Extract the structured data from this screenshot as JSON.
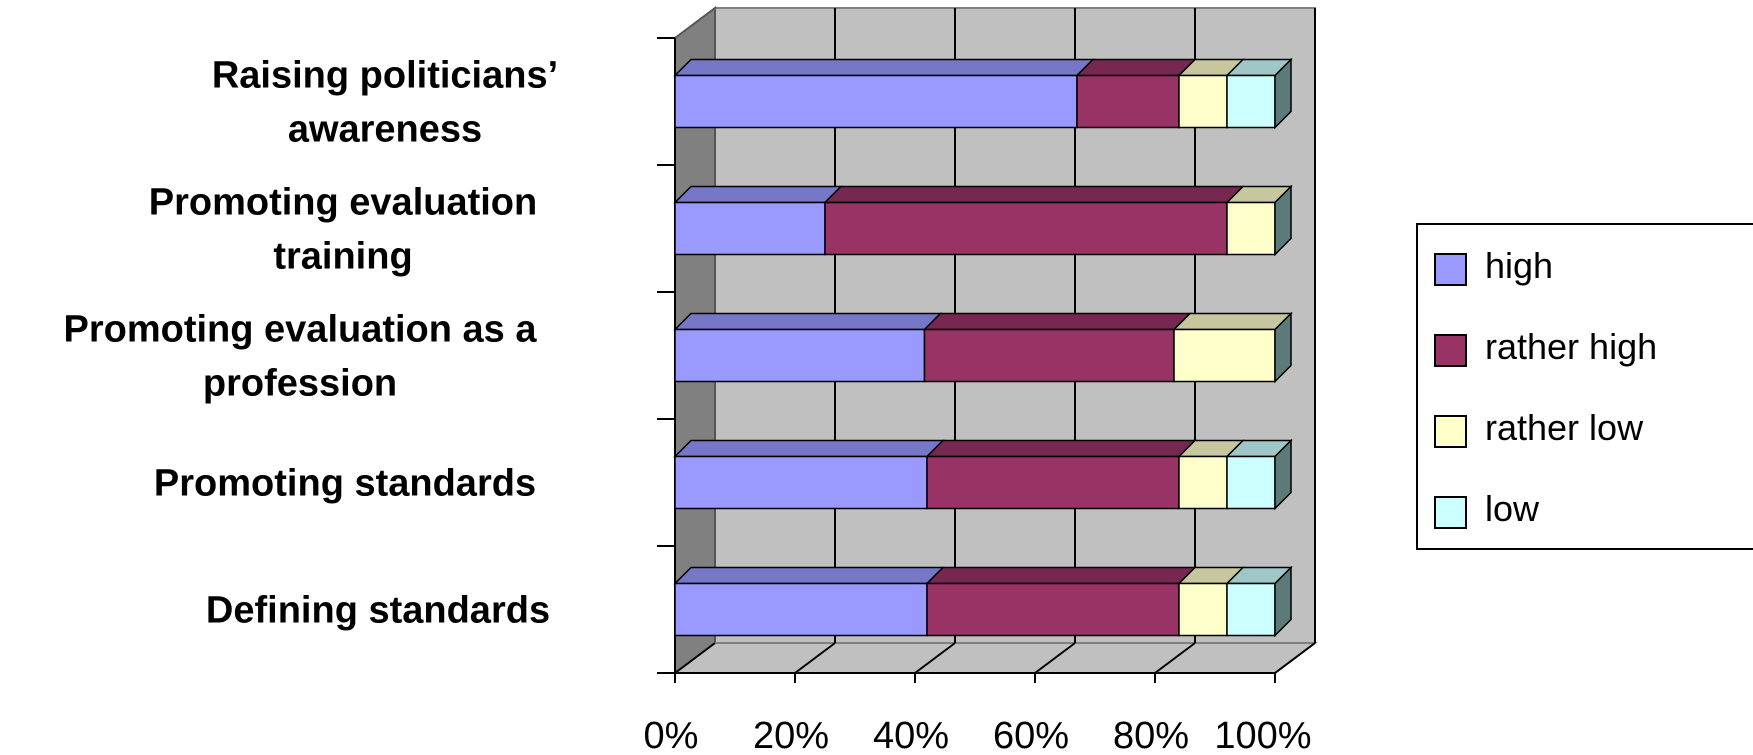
{
  "chart_data": {
    "type": "bar",
    "orientation": "horizontal",
    "stacked": "100%",
    "three_d": true,
    "categories": [
      [
        "Raising politicians’",
        "awareness"
      ],
      [
        "Promoting evaluation",
        "training"
      ],
      [
        "Promoting evaluation as a",
        "profession"
      ],
      [
        "Promoting standards"
      ],
      [
        "Defining standards"
      ]
    ],
    "series": [
      {
        "name": "high",
        "color": "#9999ff",
        "values": [
          67,
          25,
          42,
          42,
          42
        ]
      },
      {
        "name": "rather high",
        "color": "#993366",
        "values": [
          17,
          67,
          42,
          42,
          42
        ]
      },
      {
        "name": "rather low",
        "color": "#ffffcc",
        "values": [
          8,
          8,
          17,
          8,
          8
        ]
      },
      {
        "name": "low",
        "color": "#ccffff",
        "values": [
          8,
          0,
          0,
          8,
          8
        ]
      }
    ],
    "x_ticks": [
      "0%",
      "20%",
      "40%",
      "60%",
      "80%",
      "100%"
    ],
    "xlim": [
      0,
      100
    ],
    "grid": true,
    "legend_position": "right"
  }
}
